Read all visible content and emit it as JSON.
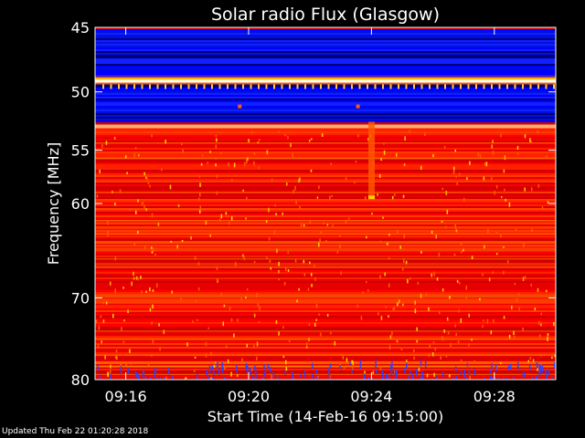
{
  "chart_data": {
    "type": "heatmap",
    "title": "Solar radio Flux (Glasgow)",
    "xlabel": "Start Time (14-Feb-16 09:15:00)",
    "ylabel_text": "Frequency ",
    "ylabel_unit": "[MHz]",
    "x_ticks": [
      "09:16",
      "09:20",
      "09:24",
      "09:28"
    ],
    "x_tick_minutes": [
      1,
      5,
      9,
      13
    ],
    "xlim_minutes": [
      0,
      15
    ],
    "y_ticks": [
      "45",
      "50",
      "55",
      "60",
      "70",
      "80"
    ],
    "y_tick_values": [
      45,
      50,
      55,
      60,
      70,
      80
    ],
    "ylim": [
      45,
      80
    ],
    "y_scale": "log",
    "y_inverted": true,
    "colormap": [
      "#00007a",
      "#0000ff",
      "#ff0000",
      "#ff5a00",
      "#ffd000",
      "#ffffff"
    ],
    "features": [
      {
        "kind": "band",
        "freq": [
          45,
          48.7
        ],
        "level": "low"
      },
      {
        "kind": "line",
        "freq": 49.1,
        "level": "very-high"
      },
      {
        "kind": "band",
        "freq": [
          49.3,
          52.5
        ],
        "level": "low"
      },
      {
        "kind": "line",
        "freq": 52.9,
        "level": "high"
      },
      {
        "kind": "band",
        "freq": [
          53,
          80
        ],
        "level": "medium"
      },
      {
        "kind": "burst",
        "time_minutes": 8.9,
        "freq": [
          52.5,
          59.4
        ],
        "level": "high"
      }
    ]
  },
  "footer": {
    "updated": "Updated Thu Feb 22 01:20:28 2018"
  }
}
